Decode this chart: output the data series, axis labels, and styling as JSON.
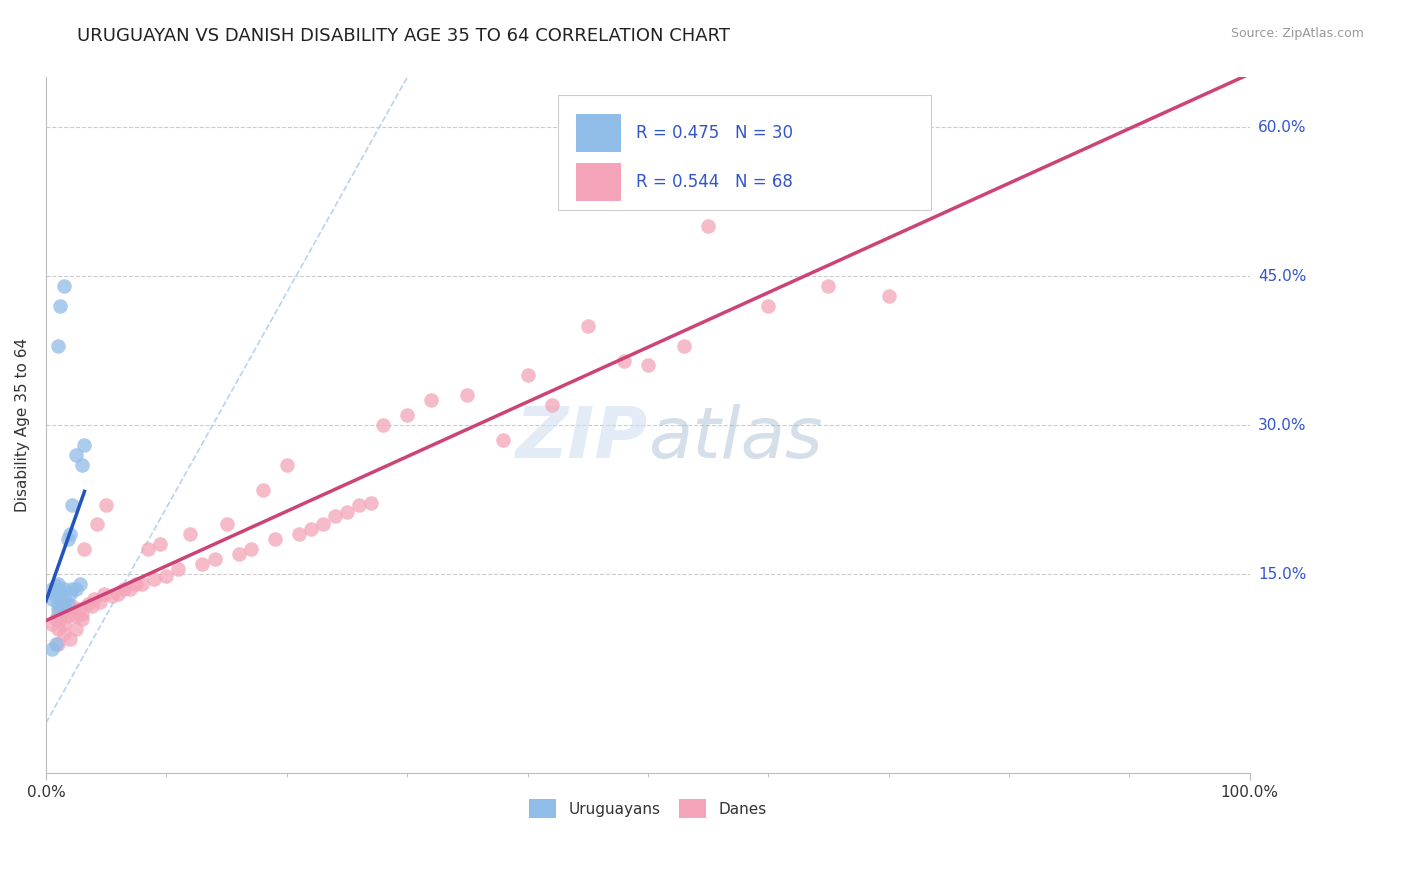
{
  "title": "URUGUAYAN VS DANISH DISABILITY AGE 35 TO 64 CORRELATION CHART",
  "source_text": "Source: ZipAtlas.com",
  "ylabel": "Disability Age 35 to 64",
  "xlim": [
    0.0,
    1.0
  ],
  "ylim": [
    -0.05,
    0.65
  ],
  "ytick_vals": [
    0.15,
    0.3,
    0.45,
    0.6
  ],
  "ytick_labels": [
    "15.0%",
    "30.0%",
    "45.0%",
    "60.0%"
  ],
  "grid_color": "#cccccc",
  "background_color": "#ffffff",
  "uruguayan_color": "#90bce8",
  "danish_color": "#f4a4b8",
  "uruguayan_line_color": "#2255bb",
  "danish_line_color": "#cc4477",
  "diag_line_color": "#aaccee",
  "uruguayan_R": 0.475,
  "uruguayan_N": 30,
  "danish_R": 0.544,
  "danish_N": 68,
  "legend_text_color": "#3355cc",
  "title_fontsize": 13,
  "axis_label_fontsize": 11,
  "tick_fontsize": 11,
  "uruguayan_scatter_x": [
    0.005,
    0.005,
    0.008,
    0.008,
    0.01,
    0.01,
    0.01,
    0.01,
    0.01,
    0.012,
    0.012,
    0.015,
    0.015,
    0.015,
    0.018,
    0.018,
    0.02,
    0.02,
    0.022,
    0.022,
    0.025,
    0.025,
    0.028,
    0.03,
    0.032,
    0.005,
    0.008,
    0.01,
    0.012,
    0.015
  ],
  "uruguayan_scatter_y": [
    0.125,
    0.135,
    0.128,
    0.138,
    0.115,
    0.12,
    0.13,
    0.135,
    0.14,
    0.122,
    0.132,
    0.118,
    0.125,
    0.135,
    0.12,
    0.185,
    0.13,
    0.19,
    0.135,
    0.22,
    0.135,
    0.27,
    0.14,
    0.26,
    0.28,
    0.075,
    0.08,
    0.38,
    0.42,
    0.44
  ],
  "danish_scatter_x": [
    0.005,
    0.008,
    0.01,
    0.01,
    0.012,
    0.015,
    0.015,
    0.018,
    0.02,
    0.022,
    0.025,
    0.028,
    0.03,
    0.032,
    0.035,
    0.038,
    0.04,
    0.042,
    0.045,
    0.048,
    0.05,
    0.055,
    0.06,
    0.065,
    0.07,
    0.075,
    0.08,
    0.085,
    0.09,
    0.095,
    0.1,
    0.11,
    0.12,
    0.13,
    0.14,
    0.15,
    0.16,
    0.17,
    0.18,
    0.19,
    0.2,
    0.21,
    0.22,
    0.23,
    0.24,
    0.25,
    0.26,
    0.27,
    0.28,
    0.3,
    0.32,
    0.35,
    0.38,
    0.4,
    0.42,
    0.45,
    0.48,
    0.5,
    0.53,
    0.55,
    0.6,
    0.65,
    0.7,
    0.01,
    0.015,
    0.02,
    0.025,
    0.03
  ],
  "danish_scatter_y": [
    0.1,
    0.105,
    0.095,
    0.11,
    0.105,
    0.1,
    0.115,
    0.108,
    0.112,
    0.118,
    0.108,
    0.115,
    0.11,
    0.175,
    0.12,
    0.118,
    0.125,
    0.2,
    0.122,
    0.13,
    0.22,
    0.128,
    0.13,
    0.135,
    0.135,
    0.14,
    0.14,
    0.175,
    0.145,
    0.18,
    0.148,
    0.155,
    0.19,
    0.16,
    0.165,
    0.2,
    0.17,
    0.175,
    0.235,
    0.185,
    0.26,
    0.19,
    0.195,
    0.2,
    0.208,
    0.212,
    0.22,
    0.222,
    0.3,
    0.31,
    0.325,
    0.33,
    0.285,
    0.35,
    0.32,
    0.4,
    0.365,
    0.36,
    0.38,
    0.5,
    0.42,
    0.44,
    0.43,
    0.08,
    0.09,
    0.085,
    0.095,
    0.105
  ]
}
